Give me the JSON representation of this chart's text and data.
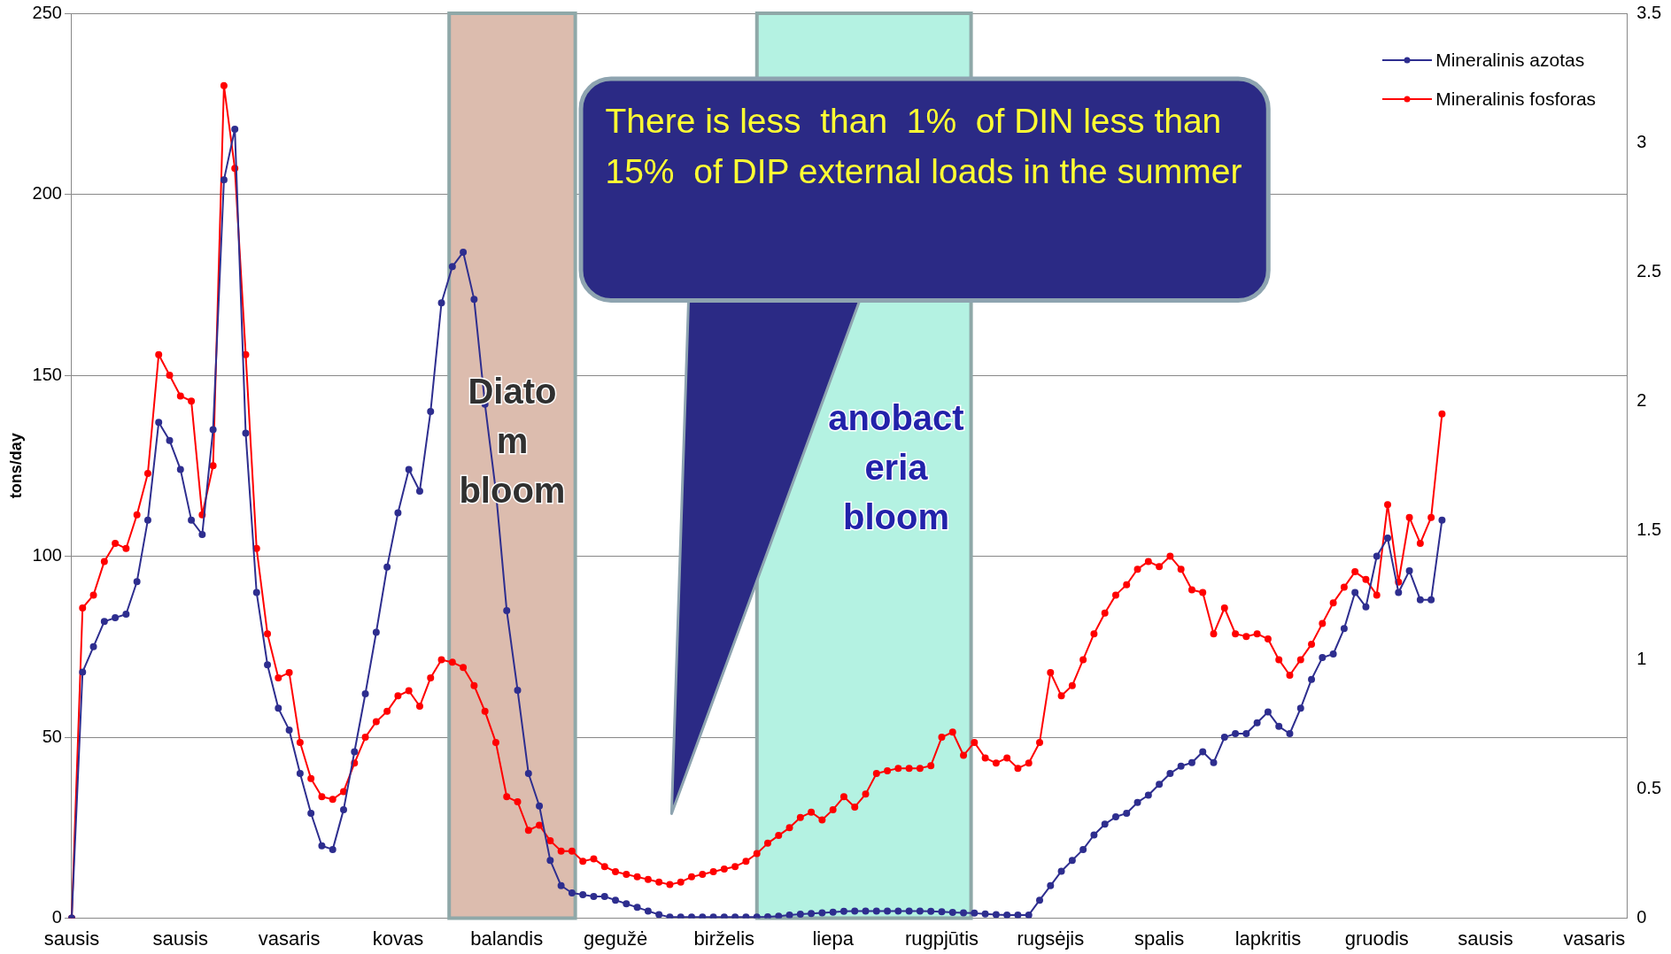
{
  "chart_data": {
    "type": "line",
    "ylabel": "tons/day",
    "annotations": [
      "There is less  than  1%  of DIN less than 15%  of DIP external loads in the summer",
      "Diatom bloom",
      "anobacteria bloom"
    ],
    "categories": [
      "sausis",
      null,
      null,
      null,
      null,
      null,
      null,
      null,
      null,
      null,
      "sausis",
      null,
      null,
      null,
      null,
      null,
      null,
      null,
      null,
      null,
      "vasaris",
      null,
      null,
      null,
      null,
      null,
      null,
      null,
      null,
      null,
      "kovas",
      null,
      null,
      null,
      null,
      null,
      null,
      null,
      null,
      null,
      "balandis",
      null,
      null,
      null,
      null,
      null,
      null,
      null,
      null,
      null,
      "gegužė",
      null,
      null,
      null,
      null,
      null,
      null,
      null,
      null,
      null,
      "birželis",
      null,
      null,
      null,
      null,
      null,
      null,
      null,
      null,
      null,
      "liepa",
      null,
      null,
      null,
      null,
      null,
      null,
      null,
      null,
      null,
      "rugpjūtis",
      null,
      null,
      null,
      null,
      null,
      null,
      null,
      null,
      null,
      "rugsėjis",
      null,
      null,
      null,
      null,
      null,
      null,
      null,
      null,
      null,
      "spalis",
      null,
      null,
      null,
      null,
      null,
      null,
      null,
      null,
      null,
      "lapkritis",
      null,
      null,
      null,
      null,
      null,
      null,
      null,
      null,
      null,
      "gruodis",
      null,
      null,
      null,
      null,
      null,
      null,
      null,
      null,
      null,
      "sausis",
      null,
      null,
      null,
      null,
      null,
      null,
      null,
      null,
      null,
      "vasaris",
      null,
      null,
      null
    ],
    "ylim": [
      0,
      250
    ],
    "yticks": [
      0,
      50,
      100,
      150,
      200,
      250
    ],
    "y2lim": [
      0,
      3.5
    ],
    "y2ticks": [
      0,
      0.5,
      1,
      1.5,
      2,
      2.5,
      3,
      3.5
    ],
    "grid": "y",
    "legend": "top right",
    "marker": "circle",
    "line_style": "solid",
    "series": [
      {
        "name": "Mineralinis azotas",
        "color": "#2e2e8f",
        "values": [
          0,
          68,
          75,
          82,
          83,
          84,
          93,
          110,
          137,
          132,
          124,
          110,
          106,
          135,
          204,
          218,
          134,
          90,
          70,
          58,
          52,
          40,
          29,
          20,
          19,
          30,
          46,
          62,
          79,
          97,
          112,
          124,
          118,
          140,
          170,
          180,
          184,
          171,
          142,
          118,
          85,
          63,
          40,
          31,
          16,
          9,
          7,
          6.5,
          6,
          6,
          5,
          4,
          3,
          2,
          1,
          0.3,
          0.3,
          0.3,
          0.3,
          0.3,
          0.3,
          0.3,
          0.3,
          0.3,
          0.4,
          0.6,
          0.9,
          1.1,
          1.3,
          1.5,
          1.7,
          1.9,
          2,
          2,
          2,
          2,
          2,
          2,
          2,
          1.9,
          1.8,
          1.6,
          1.5,
          1.4,
          1.2,
          1,
          0.9,
          0.9,
          0.9,
          5,
          9,
          13,
          16,
          19,
          23,
          26,
          28,
          29,
          32,
          34,
          37,
          40,
          42,
          43,
          46,
          43,
          50,
          51,
          51,
          54,
          57,
          53,
          51,
          58,
          66,
          72,
          73,
          80,
          90,
          86,
          100,
          105,
          90,
          96,
          88,
          88,
          110,
          null,
          null,
          null,
          null,
          null,
          null,
          null,
          null,
          null,
          null,
          null,
          null,
          null,
          null,
          null,
          null,
          null
        ]
      },
      {
        "name": "Mineralinis fosforas",
        "color": "#ff0000",
        "axis": "y2",
        "values": [
          0,
          1.2,
          1.25,
          1.38,
          1.45,
          1.43,
          1.56,
          1.72,
          2.18,
          2.1,
          2.02,
          2,
          1.56,
          1.75,
          3.22,
          2.9,
          2.18,
          1.43,
          1.1,
          0.93,
          0.95,
          0.68,
          0.54,
          0.47,
          0.46,
          0.49,
          0.6,
          0.7,
          0.76,
          0.8,
          0.86,
          0.88,
          0.82,
          0.93,
          1,
          0.99,
          0.97,
          0.9,
          0.8,
          0.68,
          0.47,
          0.45,
          0.34,
          0.36,
          0.3,
          0.26,
          0.26,
          0.22,
          0.23,
          0.2,
          0.18,
          0.17,
          0.16,
          0.15,
          0.14,
          0.13,
          0.14,
          0.16,
          0.17,
          0.18,
          0.19,
          0.2,
          0.22,
          0.25,
          0.29,
          0.32,
          0.35,
          0.39,
          0.41,
          0.38,
          0.42,
          0.47,
          0.43,
          0.48,
          0.56,
          0.57,
          0.58,
          0.58,
          0.58,
          0.59,
          0.7,
          0.72,
          0.63,
          0.68,
          0.62,
          0.6,
          0.62,
          0.58,
          0.6,
          0.68,
          0.95,
          0.86,
          0.9,
          1,
          1.1,
          1.18,
          1.25,
          1.29,
          1.35,
          1.38,
          1.36,
          1.4,
          1.35,
          1.27,
          1.26,
          1.1,
          1.2,
          1.1,
          1.09,
          1.1,
          1.08,
          1,
          0.94,
          1,
          1.06,
          1.14,
          1.22,
          1.28,
          1.34,
          1.31,
          1.25,
          1.6,
          1.3,
          1.55,
          1.45,
          1.55,
          1.95,
          null,
          null,
          null,
          null,
          null,
          null,
          null,
          null,
          null,
          null,
          null,
          null,
          null,
          null,
          null,
          null,
          null
        ]
      }
    ]
  }
}
